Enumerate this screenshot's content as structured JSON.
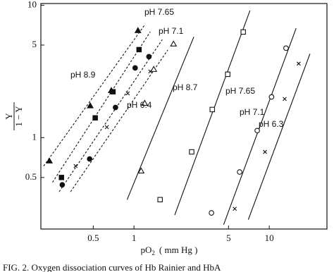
{
  "chart_data": {
    "type": "scatter",
    "log_x": true,
    "log_y": true,
    "x_label": {
      "main": "pO",
      "sub": "2",
      "unit": "( mm Hg )"
    },
    "y_label": {
      "numerator": "Y",
      "denominator": "1 − Y"
    },
    "caption": "FIG. 2. Oxygen dissociation curves of Hb Rainier and HbA",
    "xlim": [
      0.205,
      26.7
    ],
    "ylim": [
      0.204,
      10.3
    ],
    "xticks": [
      0.5,
      1,
      5,
      10
    ],
    "yticks": [
      0.5,
      1,
      5,
      10
    ],
    "color": "#111111",
    "series": [
      {
        "name": "pH 8.9",
        "marker": "triangle",
        "filled": true,
        "dashed": true,
        "x": [
          0.237,
          0.475,
          0.68,
          1.07
        ],
        "values": [
          0.667,
          1.74,
          2.27,
          6.44
        ],
        "line_x": [
          0.215,
          1.2
        ],
        "line_y": [
          0.61,
          7.1
        ]
      },
      {
        "name": "pH 7.65",
        "marker": "square",
        "filled": true,
        "dashed": true,
        "x": [
          0.291,
          0.517,
          0.7,
          1.09
        ],
        "values": [
          0.5,
          1.41,
          2.22,
          4.62
        ],
        "line_x": [
          0.25,
          1.32
        ],
        "line_y": [
          0.46,
          6.3
        ]
      },
      {
        "name": "pH 7.1",
        "marker": "circle",
        "filled": true,
        "dashed": true,
        "x": [
          0.295,
          0.47,
          0.73,
          1.02,
          1.29
        ],
        "values": [
          0.44,
          0.69,
          1.69,
          3.36,
          4.09
        ],
        "line_x": [
          0.28,
          1.62
        ],
        "line_y": [
          0.39,
          5.5
        ]
      },
      {
        "name": "pH 6.4",
        "marker": "x",
        "filled": false,
        "dashed": true,
        "x": [
          0.37,
          0.63,
          0.9,
          1.32
        ],
        "values": [
          0.61,
          1.2,
          2.16,
          3.16
        ],
        "line_x": [
          0.34,
          1.78
        ],
        "line_y": [
          0.39,
          4.6
        ]
      },
      {
        "name": "pH 8.7",
        "marker": "triangle",
        "filled": false,
        "dashed": false,
        "x": [
          1.13,
          1.2,
          1.4,
          1.96
        ],
        "values": [
          0.56,
          1.82,
          3.28,
          5.1
        ],
        "line_x": [
          0.89,
          2.77
        ],
        "line_y": [
          0.34,
          5.77
        ]
      },
      {
        "name": "pH 7.65",
        "marker": "square",
        "filled": false,
        "dashed": false,
        "x": [
          1.56,
          2.67,
          3.79,
          4.93,
          6.42
        ],
        "values": [
          0.34,
          0.78,
          1.63,
          3.01,
          6.28
        ],
        "line_x": [
          2.0,
          7.2
        ],
        "line_y": [
          0.26,
          9.1
        ]
      },
      {
        "name": "pH 7.1",
        "marker": "circle",
        "filled": false,
        "dashed": false,
        "x": [
          3.74,
          6.04,
          8.15,
          10.4,
          13.3
        ],
        "values": [
          0.27,
          0.55,
          1.13,
          2.03,
          4.74
        ],
        "line_x": [
          4.6,
          15.8
        ],
        "line_y": [
          0.22,
          6.7
        ]
      },
      {
        "name": "pH 6.3",
        "marker": "x",
        "filled": false,
        "dashed": false,
        "x": [
          5.56,
          9.3,
          13.0,
          16.5
        ],
        "values": [
          0.29,
          0.78,
          1.96,
          3.62
        ],
        "line_x": [
          7.0,
          20
        ],
        "line_y": [
          0.24,
          4.3
        ]
      }
    ]
  }
}
